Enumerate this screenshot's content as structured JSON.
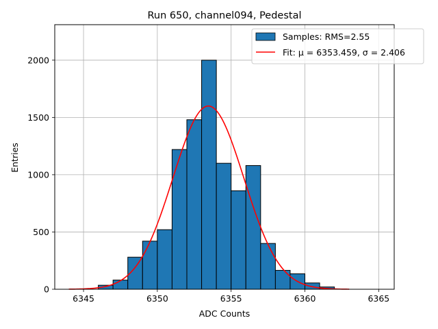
{
  "chart_data": {
    "type": "bar",
    "title": "Run 650, channel094, Pedestal",
    "xlabel": "ADC Counts",
    "ylabel": "Entries",
    "xlim": [
      6343.05,
      6366.05
    ],
    "ylim": [
      0,
      2310
    ],
    "xticks": [
      6345,
      6350,
      6355,
      6360,
      6365
    ],
    "yticks": [
      0,
      500,
      1000,
      1500,
      2000
    ],
    "grid": true,
    "legend_position": "top-right",
    "histogram": {
      "name": "Samples: RMS=2.55",
      "color": "#1f77b4",
      "edgecolor": "#000000",
      "bin_edges": [
        6346,
        6347,
        6348,
        6349,
        6350,
        6351,
        6352,
        6353,
        6354,
        6355,
        6356,
        6357,
        6358,
        6359,
        6360,
        6361,
        6362
      ],
      "values": [
        35,
        80,
        280,
        420,
        520,
        1220,
        1480,
        2000,
        1100,
        860,
        1080,
        400,
        165,
        135,
        55,
        20
      ]
    },
    "fit": {
      "name": "Fit: μ = 6353.459, σ = 2.406",
      "color": "#ff0000",
      "type": "gaussian",
      "mu": 6353.459,
      "sigma": 2.406,
      "amplitude": 1600,
      "x_range": [
        6344,
        6363
      ]
    }
  }
}
